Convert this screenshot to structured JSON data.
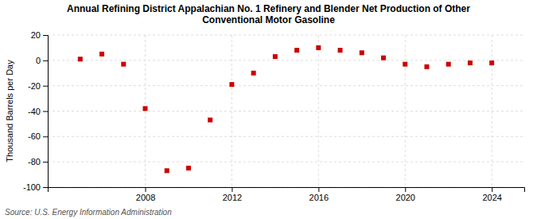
{
  "chart_data": {
    "type": "scatter",
    "title": "Annual Refining District Appalachian No. 1 Refinery and Blender Net Production of Other\nConventional Motor Gasoline",
    "y_label": "Thousand Barrels per Day",
    "source": "Source: U.S. Energy Information Administration",
    "x": [
      2005,
      2006,
      2007,
      2008,
      2009,
      2010,
      2011,
      2012,
      2013,
      2014,
      2015,
      2016,
      2017,
      2018,
      2019,
      2020,
      2021,
      2022,
      2023,
      2024
    ],
    "values": [
      1,
      5,
      -3,
      -38,
      -87,
      -85,
      -47,
      -19,
      -10,
      3,
      8,
      10,
      8,
      6,
      2,
      -3,
      -5,
      -3,
      -2,
      -2
    ],
    "color": "#cc0000",
    "marker": "square",
    "xlim": [
      2003.5,
      2025.5
    ],
    "xticks": [
      2008,
      2012,
      2016,
      2020,
      2024
    ],
    "ylim": [
      -100,
      20
    ],
    "yticks": [
      -100,
      -80,
      -60,
      -40,
      -20,
      0,
      20
    ],
    "grid": true
  }
}
